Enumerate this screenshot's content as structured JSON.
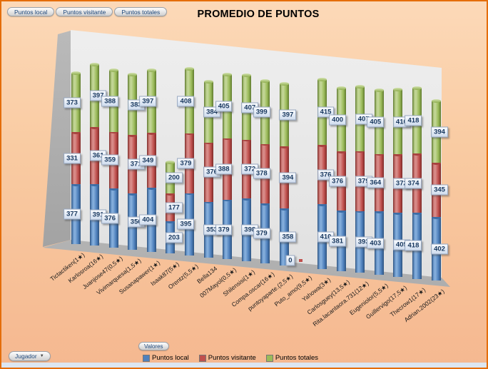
{
  "title": "PROMEDIO DE PUNTOS",
  "filter_buttons": {
    "local": "Puntos local",
    "visitante": "Puntos visitante",
    "totales": "Puntos totales"
  },
  "jugador_button": {
    "label": "Jugador"
  },
  "valores_button": {
    "label": "Valores"
  },
  "legend": {
    "position": "bottom",
    "items": [
      {
        "label": "Puntos local",
        "color": "#4F81BD"
      },
      {
        "label": "Puntos visitante",
        "color": "#C0504D"
      },
      {
        "label": "Puntos totales",
        "color": "#9BBB59"
      }
    ]
  },
  "chart_data": {
    "type": "bar",
    "subtype": "3d-stacked-cylinder",
    "title": "PROMEDIO DE PUNTOS",
    "xlabel": "Jugador",
    "ylabel": "",
    "grid": false,
    "legend_position": "bottom",
    "data_labels": true,
    "categories": [
      "Tictactiken(1★)",
      "Karlosroa(16★)",
      "Juanjose47(0,5★)",
      "Vivimarquesa(1,5★)",
      "Susanapawer(1★)",
      "Isaak87(5★)",
      "Orentz(5,5★)",
      "Bella134",
      "007Mayol(0,5★)",
      "Shilensisi(1★)",
      "Compa.oscar(16★)",
      "puntoyaparte.(2,5★)",
      "Puto_amo(9,5★)",
      "Yahowa(3★)",
      "Carlosguey(13,5★)",
      "Rita.lacantaora.731(12★)",
      "Eugeniolor(5,5★)",
      "Guillervigo(17,5★)",
      "Thecrow1(17★)",
      "Adrian.2002(23★)"
    ],
    "series": [
      {
        "name": "Puntos local",
        "color": "#4F81BD",
        "values": [
          377,
          391,
          376,
          356,
          404,
          203,
          395,
          353,
          379,
          398,
          379,
          358,
          0,
          410,
          381,
          393,
          403,
          405,
          418,
          402
        ]
      },
      {
        "name": "Puntos visitante",
        "color": "#C0504D",
        "values": [
          331,
          361,
          359,
          371,
          349,
          177,
          379,
          376,
          388,
          372,
          378,
          394,
          0,
          376,
          376,
          379,
          364,
          372,
          374,
          345
        ]
      },
      {
        "name": "Puntos totales",
        "color": "#9BBB59",
        "values": [
          373,
          397,
          388,
          383,
          397,
          200,
          408,
          384,
          405,
          407,
          399,
          397,
          0,
          415,
          400,
          407,
          405,
          410,
          418,
          394
        ]
      }
    ]
  }
}
